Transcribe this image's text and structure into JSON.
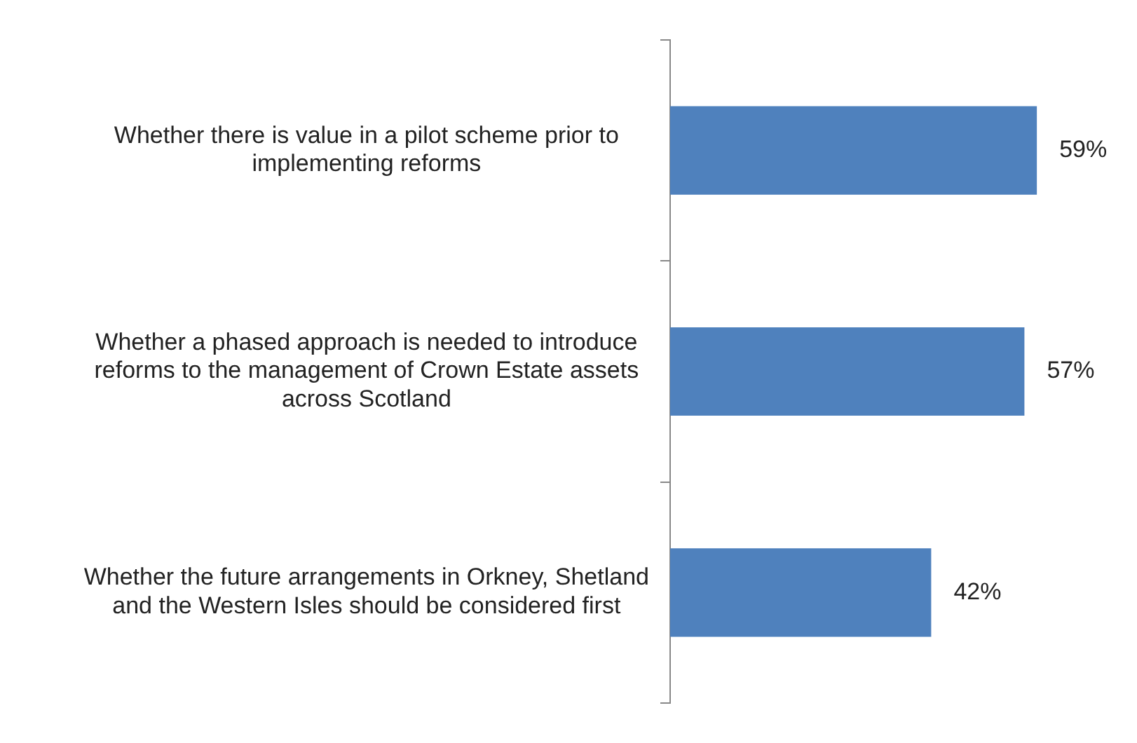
{
  "chart_data": {
    "type": "bar",
    "orientation": "horizontal",
    "categories": [
      "Whether there is value in a pilot scheme prior to implementing reforms",
      "Whether a phased approach is needed to introduce reforms to the management of Crown Estate assets across Scotland",
      "Whether the future arrangements in Orkney, Shetland and the Western Isles should be considered first"
    ],
    "values": [
      59,
      57,
      42
    ],
    "color": "#4f81bd",
    "value_labels": [
      "59%",
      "57%",
      "42%"
    ],
    "tick_labels": "y"
  }
}
